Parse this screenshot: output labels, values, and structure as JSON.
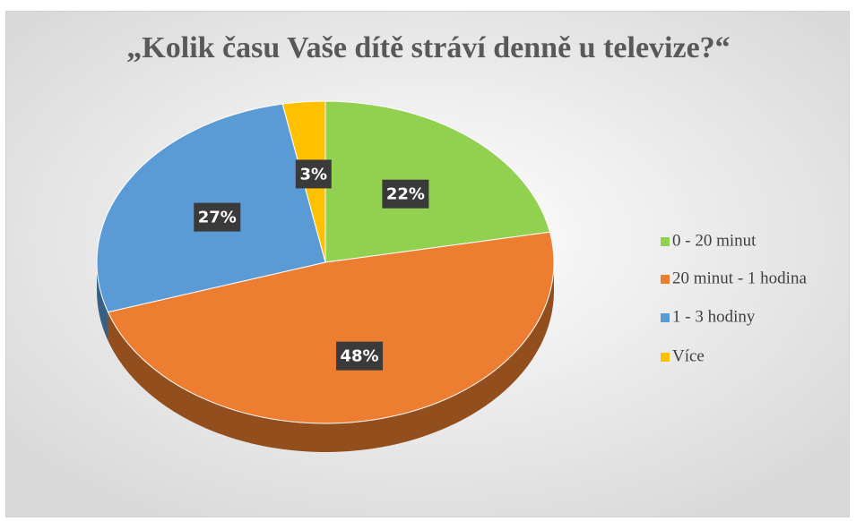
{
  "chart_data": {
    "type": "pie",
    "title": "„Kolik času Vaše dítě stráví denně u televize?“",
    "categories": [
      "0 - 20 minut",
      "20 minut - 1 hodina",
      "1 - 3 hodiny",
      "Více"
    ],
    "values": [
      22,
      48,
      27,
      3
    ],
    "value_labels": [
      "22%",
      "48%",
      "27%",
      "3%"
    ],
    "colors": [
      "#92d050",
      "#ed7d31",
      "#5b9bd5",
      "#ffc000"
    ],
    "legend": "right"
  }
}
